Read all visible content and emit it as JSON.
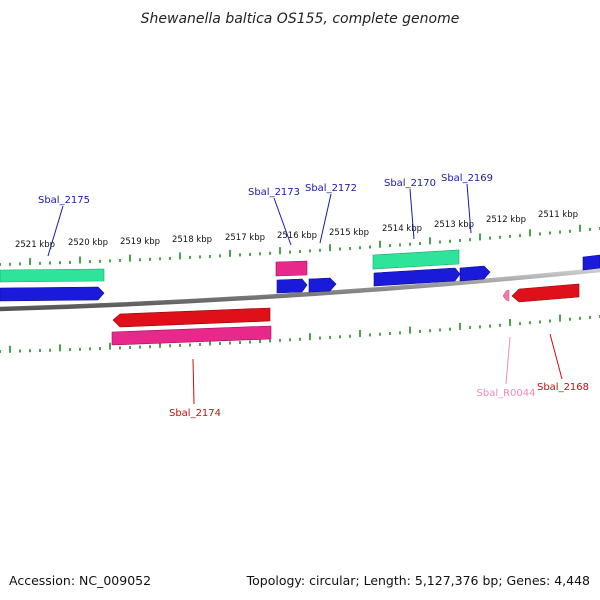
{
  "title": "Shewanella baltica OS155, complete genome",
  "footer": {
    "accession": "Accession: NC_009052",
    "summary": "Topology: circular; Length: 5,127,376 bp; Genes: 4,448"
  },
  "colors": {
    "forward_cds": "#1a1adb",
    "reverse_cds": "#e0101a",
    "gene_forward": "#2ee39a",
    "gene_reverse": "#e8288a",
    "rna": "#f37ab0",
    "backbone": "#8a8a8a",
    "tick": "#1f8a1f",
    "label_forward": "#1a1aa8",
    "label_reverse": "#c40f0f",
    "label_rna": "#f08ab6"
  },
  "scale_labels": [
    "2521 kbp",
    "2520 kbp",
    "2519 kbp",
    "2518 kbp",
    "2517 kbp",
    "2516 kbp",
    "2515 kbp",
    "2514 kbp",
    "2513 kbp",
    "2512 kbp",
    "2511 kbp"
  ],
  "gene_labels": [
    {
      "text": "Sbal_2175",
      "strand": "forward"
    },
    {
      "text": "Sbal_2173",
      "strand": "forward"
    },
    {
      "text": "Sbal_2172",
      "strand": "forward"
    },
    {
      "text": "Sbal_2170",
      "strand": "forward"
    },
    {
      "text": "Sbal_2169",
      "strand": "forward"
    },
    {
      "text": "Sbal_2174",
      "strand": "reverse"
    },
    {
      "text": "Sbal_R0044",
      "strand": "rna"
    },
    {
      "text": "Sbal_2168",
      "strand": "reverse"
    }
  ]
}
